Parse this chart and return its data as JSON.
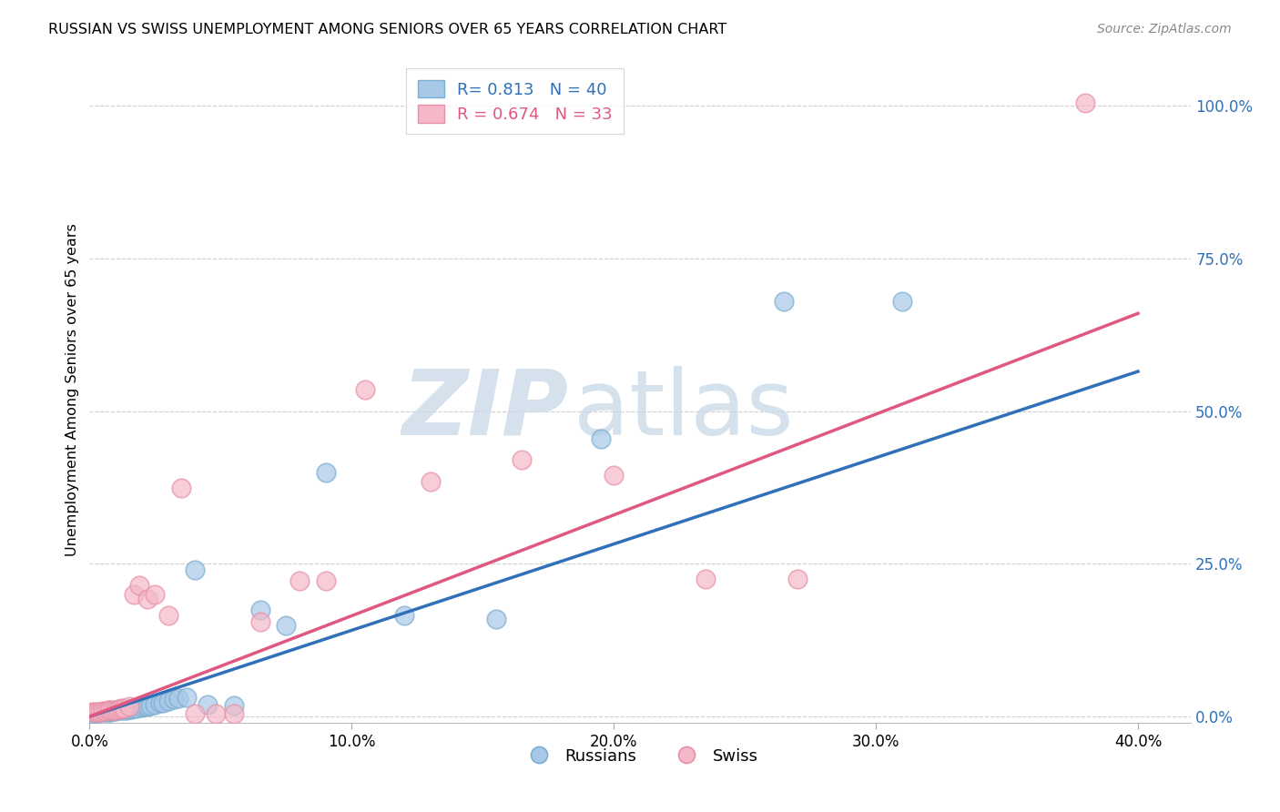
{
  "title": "RUSSIAN VS SWISS UNEMPLOYMENT AMONG SENIORS OVER 65 YEARS CORRELATION CHART",
  "source": "Source: ZipAtlas.com",
  "ylabel": "Unemployment Among Seniors over 65 years",
  "xlim": [
    0.0,
    0.42
  ],
  "ylim": [
    -0.01,
    1.08
  ],
  "xticks": [
    0.0,
    0.1,
    0.2,
    0.3,
    0.4
  ],
  "xticklabels": [
    "0.0%",
    "10.0%",
    "20.0%",
    "30.0%",
    "40.0%"
  ],
  "yticks_right": [
    0.0,
    0.25,
    0.5,
    0.75,
    1.0
  ],
  "yticklabels_right": [
    "0.0%",
    "25.0%",
    "50.0%",
    "75.0%",
    "100.0%"
  ],
  "russian_R": "0.813",
  "russian_N": "40",
  "swiss_R": "0.674",
  "swiss_N": "33",
  "blue_face_color": "#a8c8e8",
  "blue_edge_color": "#7aaed0",
  "pink_face_color": "#f4b8c8",
  "pink_edge_color": "#e890a8",
  "blue_line_color": "#3070b8",
  "pink_line_color": "#e05880",
  "legend_label_russian": "Russians",
  "legend_label_swiss": "Swiss",
  "watermark": "ZIPatlas",
  "watermark_color": "#c8d8e8",
  "background_color": "#ffffff",
  "grid_color": "#d0d0d0",
  "russian_line_x": [
    0.0,
    0.4
  ],
  "russian_line_y": [
    0.0,
    0.565
  ],
  "swiss_line_x": [
    0.0,
    0.4
  ],
  "swiss_line_y": [
    0.0,
    0.66
  ],
  "russian_points_x": [
    0.001,
    0.002,
    0.003,
    0.004,
    0.005,
    0.006,
    0.007,
    0.008,
    0.009,
    0.01,
    0.011,
    0.012,
    0.013,
    0.014,
    0.015,
    0.016,
    0.017,
    0.018,
    0.02,
    0.021,
    0.022,
    0.023,
    0.025,
    0.027,
    0.028,
    0.03,
    0.032,
    0.034,
    0.037,
    0.04,
    0.045,
    0.055,
    0.065,
    0.075,
    0.09,
    0.12,
    0.155,
    0.195,
    0.265,
    0.31
  ],
  "russian_points_y": [
    0.005,
    0.005,
    0.006,
    0.007,
    0.007,
    0.008,
    0.008,
    0.008,
    0.009,
    0.009,
    0.01,
    0.01,
    0.011,
    0.011,
    0.012,
    0.012,
    0.013,
    0.013,
    0.015,
    0.016,
    0.017,
    0.018,
    0.02,
    0.022,
    0.023,
    0.025,
    0.028,
    0.03,
    0.032,
    0.24,
    0.02,
    0.018,
    0.175,
    0.15,
    0.4,
    0.165,
    0.16,
    0.455,
    0.68,
    0.68
  ],
  "swiss_points_x": [
    0.001,
    0.002,
    0.003,
    0.004,
    0.005,
    0.006,
    0.007,
    0.008,
    0.009,
    0.01,
    0.011,
    0.012,
    0.013,
    0.015,
    0.017,
    0.019,
    0.022,
    0.025,
    0.03,
    0.035,
    0.04,
    0.048,
    0.055,
    0.065,
    0.08,
    0.09,
    0.105,
    0.13,
    0.165,
    0.2,
    0.235,
    0.27,
    0.38
  ],
  "swiss_points_y": [
    0.007,
    0.007,
    0.008,
    0.008,
    0.009,
    0.009,
    0.01,
    0.01,
    0.011,
    0.011,
    0.012,
    0.013,
    0.014,
    0.016,
    0.2,
    0.215,
    0.192,
    0.2,
    0.165,
    0.375,
    0.005,
    0.005,
    0.005,
    0.155,
    0.222,
    0.222,
    0.535,
    0.385,
    0.42,
    0.395,
    0.225,
    0.225,
    1.005
  ]
}
